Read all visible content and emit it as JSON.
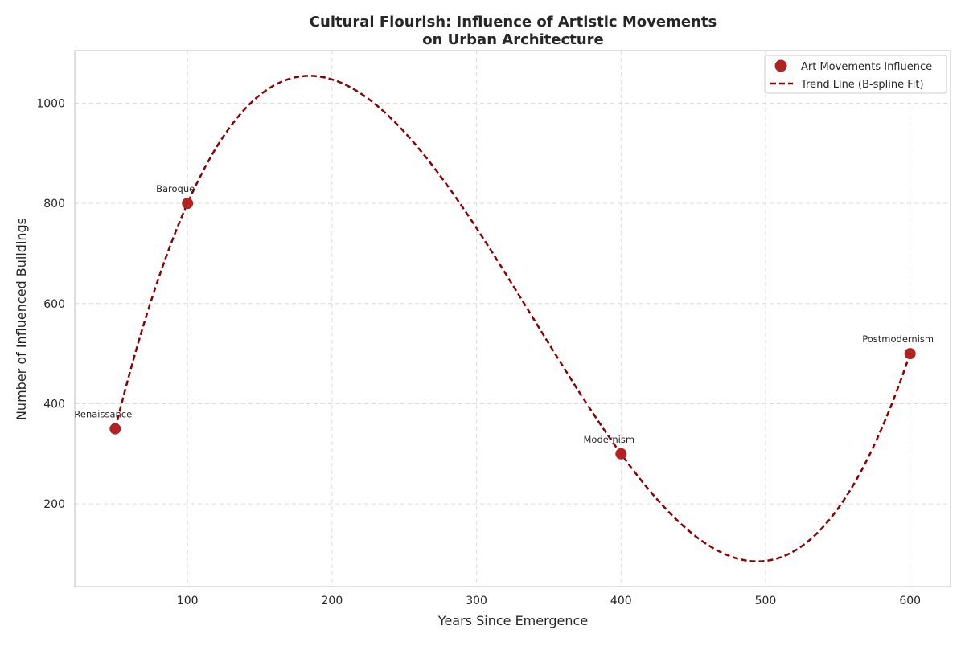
{
  "chart_data": {
    "type": "scatter",
    "title_line1": "Cultural Flourish: Influence of Artistic Movements",
    "title_line2": "on Urban Architecture",
    "xlabel": "Years Since Emergence",
    "ylabel": "Number of Influenced Buildings",
    "xlim": [
      22,
      628
    ],
    "ylim": [
      35,
      1105
    ],
    "xticks": [
      100,
      200,
      300,
      400,
      500,
      600
    ],
    "yticks": [
      200,
      400,
      600,
      800,
      1000
    ],
    "grid": true,
    "legend_position": "top-right",
    "series": [
      {
        "name": "Art Movements Influence",
        "kind": "scatter",
        "color": "#b22222",
        "points": [
          {
            "x": 50,
            "y": 350,
            "label": "Renaissance"
          },
          {
            "x": 100,
            "y": 800,
            "label": "Baroque"
          },
          {
            "x": 400,
            "y": 300,
            "label": "Modernism"
          },
          {
            "x": 600,
            "y": 500,
            "label": "Postmodernism"
          }
        ]
      },
      {
        "name": "Trend Line (B-spline Fit)",
        "kind": "line",
        "style": "dashed",
        "color": "#8b0000",
        "x_range": [
          50,
          600
        ]
      }
    ]
  }
}
